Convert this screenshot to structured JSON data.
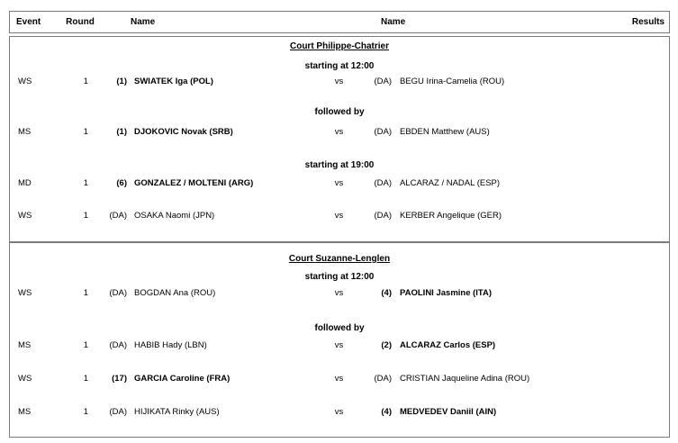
{
  "table": {
    "headers": {
      "event": "Event",
      "round": "Round",
      "name1": "Name",
      "name2": "Name",
      "results": "Results"
    },
    "vs_label": "vs",
    "sections": [
      {
        "court": "Court Philippe-Chatrier",
        "rows": [
          {
            "kind": "time",
            "label": "starting at 12:00"
          },
          {
            "kind": "match",
            "event": "WS",
            "round": "1",
            "seed1": "(1)",
            "player1": "SWIATEK Iga (POL)",
            "seed2": "(DA)",
            "player2": "BEGU Irina-Camelia (ROU)",
            "results": ""
          },
          {
            "kind": "time",
            "label": "followed by"
          },
          {
            "kind": "match",
            "event": "MS",
            "round": "1",
            "seed1": "(1)",
            "player1": "DJOKOVIC Novak (SRB)",
            "seed2": "(DA)",
            "player2": "EBDEN Matthew (AUS)",
            "results": ""
          },
          {
            "kind": "time",
            "label": "starting at 19:00"
          },
          {
            "kind": "match",
            "event": "MD",
            "round": "1",
            "seed1": "(6)",
            "player1": "GONZALEZ / MOLTENI (ARG)",
            "seed2": "(DA)",
            "player2": "ALCARAZ / NADAL (ESP)",
            "results": ""
          },
          {
            "kind": "match",
            "event": "WS",
            "round": "1",
            "seed1": "(DA)",
            "player1": "OSAKA Naomi (JPN)",
            "seed2": "(DA)",
            "player2": "KERBER Angelique (GER)",
            "results": ""
          }
        ]
      },
      {
        "court": "Court Suzanne-Lenglen",
        "rows": [
          {
            "kind": "time",
            "label": "starting at 12:00"
          },
          {
            "kind": "match",
            "event": "WS",
            "round": "1",
            "seed1": "(DA)",
            "player1": "BOGDAN Ana (ROU)",
            "seed2": "(4)",
            "player2": "PAOLINI Jasmine (ITA)",
            "results": ""
          },
          {
            "kind": "time",
            "label": "followed by"
          },
          {
            "kind": "match",
            "event": "MS",
            "round": "1",
            "seed1": "(DA)",
            "player1": "HABIB Hady (LBN)",
            "seed2": "(2)",
            "player2": "ALCARAZ Carlos (ESP)",
            "results": ""
          },
          {
            "kind": "match",
            "event": "WS",
            "round": "1",
            "seed1": "(17)",
            "player1": "GARCIA Caroline (FRA)",
            "seed2": "(DA)",
            "player2": "CRISTIAN Jaqueline Adina (ROU)",
            "results": ""
          },
          {
            "kind": "match",
            "event": "MS",
            "round": "1",
            "seed1": "(DA)",
            "player1": "HIJIKATA Rinky (AUS)",
            "seed2": "(4)",
            "player2": "MEDVEDEV Daniil (AIN)",
            "results": ""
          }
        ]
      }
    ]
  }
}
